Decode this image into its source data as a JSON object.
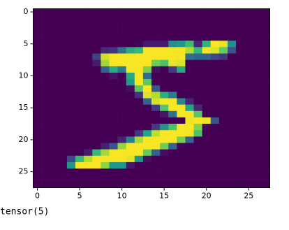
{
  "chart_data": {
    "type": "heatmap",
    "colormap": "viridis",
    "clim": [
      0,
      255
    ],
    "xlim": [
      -0.5,
      27.5
    ],
    "ylim": [
      27.5,
      -0.5
    ],
    "xticks": [
      0,
      5,
      10,
      15,
      20,
      25
    ],
    "yticks": [
      0,
      5,
      10,
      15,
      20,
      25
    ],
    "z": [
      [
        0,
        0,
        0,
        0,
        0,
        0,
        0,
        0,
        0,
        0,
        0,
        0,
        0,
        0,
        0,
        0,
        0,
        0,
        0,
        0,
        0,
        0,
        0,
        0,
        0,
        0,
        0,
        0
      ],
      [
        0,
        0,
        0,
        0,
        0,
        0,
        0,
        0,
        0,
        0,
        0,
        0,
        0,
        0,
        0,
        0,
        0,
        0,
        0,
        0,
        0,
        0,
        0,
        0,
        0,
        0,
        0,
        0
      ],
      [
        0,
        0,
        0,
        0,
        0,
        0,
        0,
        0,
        0,
        0,
        0,
        0,
        0,
        0,
        0,
        0,
        0,
        0,
        0,
        0,
        0,
        0,
        0,
        0,
        0,
        0,
        0,
        0
      ],
      [
        0,
        0,
        0,
        0,
        0,
        0,
        0,
        0,
        0,
        0,
        0,
        0,
        0,
        0,
        0,
        0,
        0,
        0,
        0,
        0,
        0,
        0,
        0,
        0,
        0,
        0,
        0,
        0
      ],
      [
        0,
        0,
        0,
        0,
        0,
        0,
        0,
        0,
        0,
        0,
        0,
        0,
        0,
        0,
        0,
        0,
        0,
        0,
        0,
        0,
        0,
        0,
        0,
        0,
        0,
        0,
        0,
        0
      ],
      [
        0,
        0,
        0,
        0,
        0,
        0,
        0,
        0,
        0,
        0,
        0,
        0,
        3,
        18,
        18,
        18,
        126,
        136,
        175,
        26,
        166,
        255,
        247,
        127,
        0,
        0,
        0,
        0
      ],
      [
        0,
        0,
        0,
        0,
        0,
        0,
        0,
        0,
        30,
        36,
        94,
        154,
        170,
        253,
        253,
        253,
        253,
        253,
        225,
        172,
        253,
        242,
        195,
        64,
        0,
        0,
        0,
        0
      ],
      [
        0,
        0,
        0,
        0,
        0,
        0,
        0,
        49,
        238,
        253,
        253,
        253,
        253,
        253,
        253,
        253,
        253,
        251,
        93,
        82,
        82,
        56,
        39,
        0,
        0,
        0,
        0,
        0
      ],
      [
        0,
        0,
        0,
        0,
        0,
        0,
        0,
        18,
        219,
        253,
        253,
        253,
        253,
        253,
        198,
        182,
        247,
        241,
        0,
        0,
        0,
        0,
        0,
        0,
        0,
        0,
        0,
        0
      ],
      [
        0,
        0,
        0,
        0,
        0,
        0,
        0,
        0,
        80,
        156,
        107,
        253,
        253,
        205,
        11,
        0,
        43,
        154,
        0,
        0,
        0,
        0,
        0,
        0,
        0,
        0,
        0,
        0
      ],
      [
        0,
        0,
        0,
        0,
        0,
        0,
        0,
        0,
        0,
        14,
        1,
        154,
        253,
        90,
        0,
        0,
        0,
        0,
        0,
        0,
        0,
        0,
        0,
        0,
        0,
        0,
        0,
        0
      ],
      [
        0,
        0,
        0,
        0,
        0,
        0,
        0,
        0,
        0,
        0,
        0,
        139,
        253,
        190,
        2,
        0,
        0,
        0,
        0,
        0,
        0,
        0,
        0,
        0,
        0,
        0,
        0,
        0
      ],
      [
        0,
        0,
        0,
        0,
        0,
        0,
        0,
        0,
        0,
        0,
        0,
        11,
        190,
        253,
        70,
        0,
        0,
        0,
        0,
        0,
        0,
        0,
        0,
        0,
        0,
        0,
        0,
        0
      ],
      [
        0,
        0,
        0,
        0,
        0,
        0,
        0,
        0,
        0,
        0,
        0,
        0,
        35,
        241,
        225,
        160,
        108,
        1,
        0,
        0,
        0,
        0,
        0,
        0,
        0,
        0,
        0,
        0
      ],
      [
        0,
        0,
        0,
        0,
        0,
        0,
        0,
        0,
        0,
        0,
        0,
        0,
        0,
        81,
        240,
        253,
        253,
        119,
        25,
        0,
        0,
        0,
        0,
        0,
        0,
        0,
        0,
        0
      ],
      [
        0,
        0,
        0,
        0,
        0,
        0,
        0,
        0,
        0,
        0,
        0,
        0,
        0,
        0,
        45,
        186,
        253,
        253,
        150,
        27,
        0,
        0,
        0,
        0,
        0,
        0,
        0,
        0
      ],
      [
        0,
        0,
        0,
        0,
        0,
        0,
        0,
        0,
        0,
        0,
        0,
        0,
        0,
        0,
        0,
        16,
        93,
        252,
        253,
        187,
        0,
        0,
        0,
        0,
        0,
        0,
        0,
        0
      ],
      [
        0,
        0,
        0,
        0,
        0,
        0,
        0,
        0,
        0,
        0,
        0,
        0,
        0,
        0,
        0,
        0,
        0,
        0,
        249,
        253,
        249,
        64,
        0,
        0,
        0,
        0,
        0,
        0
      ],
      [
        0,
        0,
        0,
        0,
        0,
        0,
        0,
        0,
        0,
        0,
        0,
        0,
        0,
        0,
        46,
        130,
        183,
        253,
        253,
        207,
        2,
        0,
        0,
        0,
        0,
        0,
        0,
        0
      ],
      [
        0,
        0,
        0,
        0,
        0,
        0,
        0,
        0,
        0,
        0,
        0,
        0,
        39,
        148,
        229,
        253,
        253,
        253,
        250,
        182,
        0,
        0,
        0,
        0,
        0,
        0,
        0,
        0
      ],
      [
        0,
        0,
        0,
        0,
        0,
        0,
        0,
        0,
        0,
        0,
        24,
        114,
        221,
        253,
        253,
        253,
        253,
        201,
        78,
        0,
        0,
        0,
        0,
        0,
        0,
        0,
        0,
        0
      ],
      [
        0,
        0,
        0,
        0,
        0,
        0,
        0,
        0,
        23,
        66,
        213,
        253,
        253,
        253,
        253,
        198,
        81,
        2,
        0,
        0,
        0,
        0,
        0,
        0,
        0,
        0,
        0,
        0
      ],
      [
        0,
        0,
        0,
        0,
        0,
        0,
        18,
        171,
        219,
        253,
        253,
        253,
        253,
        195,
        80,
        9,
        0,
        0,
        0,
        0,
        0,
        0,
        0,
        0,
        0,
        0,
        0,
        0
      ],
      [
        0,
        0,
        0,
        0,
        55,
        172,
        226,
        253,
        253,
        253,
        253,
        244,
        133,
        11,
        0,
        0,
        0,
        0,
        0,
        0,
        0,
        0,
        0,
        0,
        0,
        0,
        0,
        0
      ],
      [
        0,
        0,
        0,
        0,
        136,
        253,
        253,
        253,
        212,
        135,
        132,
        16,
        0,
        0,
        0,
        0,
        0,
        0,
        0,
        0,
        0,
        0,
        0,
        0,
        0,
        0,
        0,
        0
      ],
      [
        0,
        0,
        0,
        0,
        0,
        0,
        0,
        0,
        0,
        0,
        0,
        0,
        0,
        0,
        0,
        0,
        0,
        0,
        0,
        0,
        0,
        0,
        0,
        0,
        0,
        0,
        0,
        0
      ],
      [
        0,
        0,
        0,
        0,
        0,
        0,
        0,
        0,
        0,
        0,
        0,
        0,
        0,
        0,
        0,
        0,
        0,
        0,
        0,
        0,
        0,
        0,
        0,
        0,
        0,
        0,
        0,
        0
      ],
      [
        0,
        0,
        0,
        0,
        0,
        0,
        0,
        0,
        0,
        0,
        0,
        0,
        0,
        0,
        0,
        0,
        0,
        0,
        0,
        0,
        0,
        0,
        0,
        0,
        0,
        0,
        0,
        0
      ]
    ]
  },
  "output": "tensor(5)"
}
